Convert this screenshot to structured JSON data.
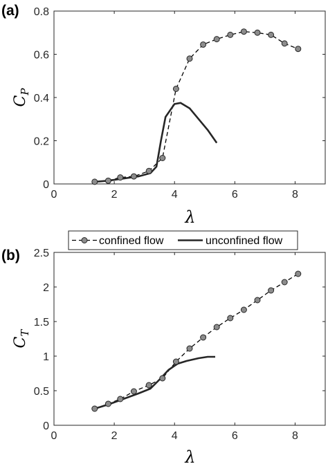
{
  "chart_data": [
    {
      "type": "line",
      "panel_label": "(a)",
      "xlabel": "λ",
      "ylabel": {
        "base": "C",
        "sub": "P"
      },
      "xlim": [
        0,
        9
      ],
      "ylim": [
        0,
        0.8
      ],
      "xticks": [
        0,
        2,
        4,
        6,
        8
      ],
      "yticks": [
        0,
        0.2,
        0.4,
        0.6,
        0.8
      ],
      "grid": false,
      "series": [
        {
          "name": "confined flow",
          "style": "dashed-with-circle-markers",
          "color": "#000000",
          "marker_color": "#8c8c8c",
          "x": [
            1.35,
            1.8,
            2.2,
            2.65,
            3.15,
            3.6,
            4.05,
            4.5,
            4.95,
            5.4,
            5.85,
            6.3,
            6.75,
            7.2,
            7.65,
            8.1
          ],
          "y": [
            0.01,
            0.015,
            0.03,
            0.035,
            0.06,
            0.12,
            0.44,
            0.58,
            0.645,
            0.67,
            0.69,
            0.705,
            0.7,
            0.69,
            0.65,
            0.625
          ]
        },
        {
          "name": "unconfined flow",
          "style": "solid",
          "color": "#262626",
          "x": [
            1.35,
            1.8,
            2.3,
            2.8,
            3.2,
            3.4,
            3.55,
            3.7,
            3.85,
            4.0,
            4.2,
            4.5,
            4.8,
            5.1,
            5.4
          ],
          "y": [
            0.01,
            0.015,
            0.025,
            0.035,
            0.05,
            0.08,
            0.2,
            0.31,
            0.34,
            0.37,
            0.375,
            0.35,
            0.3,
            0.25,
            0.19
          ]
        }
      ]
    },
    {
      "type": "line",
      "panel_label": "(b)",
      "xlabel": "λ",
      "ylabel": {
        "base": "C",
        "sub": "T"
      },
      "xlim": [
        0,
        9
      ],
      "ylim": [
        0,
        2.5
      ],
      "xticks": [
        0,
        2,
        4,
        6,
        8
      ],
      "yticks": [
        0,
        0.5,
        1,
        1.5,
        2,
        2.5
      ],
      "ytick_labels": [
        "0",
        "0.5",
        "1",
        "1.5",
        "2",
        "2.5"
      ],
      "grid": false,
      "legend": {
        "placement": "top",
        "entries": [
          "confined flow",
          "unconfined flow"
        ]
      },
      "series": [
        {
          "name": "confined flow",
          "style": "dashed-with-circle-markers",
          "color": "#000000",
          "marker_color": "#8c8c8c",
          "x": [
            1.35,
            1.8,
            2.2,
            2.65,
            3.15,
            3.6,
            4.05,
            4.5,
            4.95,
            5.4,
            5.85,
            6.3,
            6.75,
            7.2,
            7.65,
            8.1
          ],
          "y": [
            0.24,
            0.31,
            0.38,
            0.49,
            0.58,
            0.68,
            0.92,
            1.11,
            1.27,
            1.42,
            1.55,
            1.67,
            1.81,
            1.95,
            2.07,
            2.19
          ]
        },
        {
          "name": "unconfined flow",
          "style": "solid",
          "color": "#262626",
          "x": [
            1.35,
            1.8,
            2.3,
            2.8,
            3.2,
            3.5,
            3.8,
            4.1,
            4.4,
            4.8,
            5.1,
            5.35
          ],
          "y": [
            0.24,
            0.3,
            0.38,
            0.46,
            0.53,
            0.66,
            0.8,
            0.89,
            0.93,
            0.97,
            0.99,
            0.99
          ]
        }
      ]
    }
  ]
}
